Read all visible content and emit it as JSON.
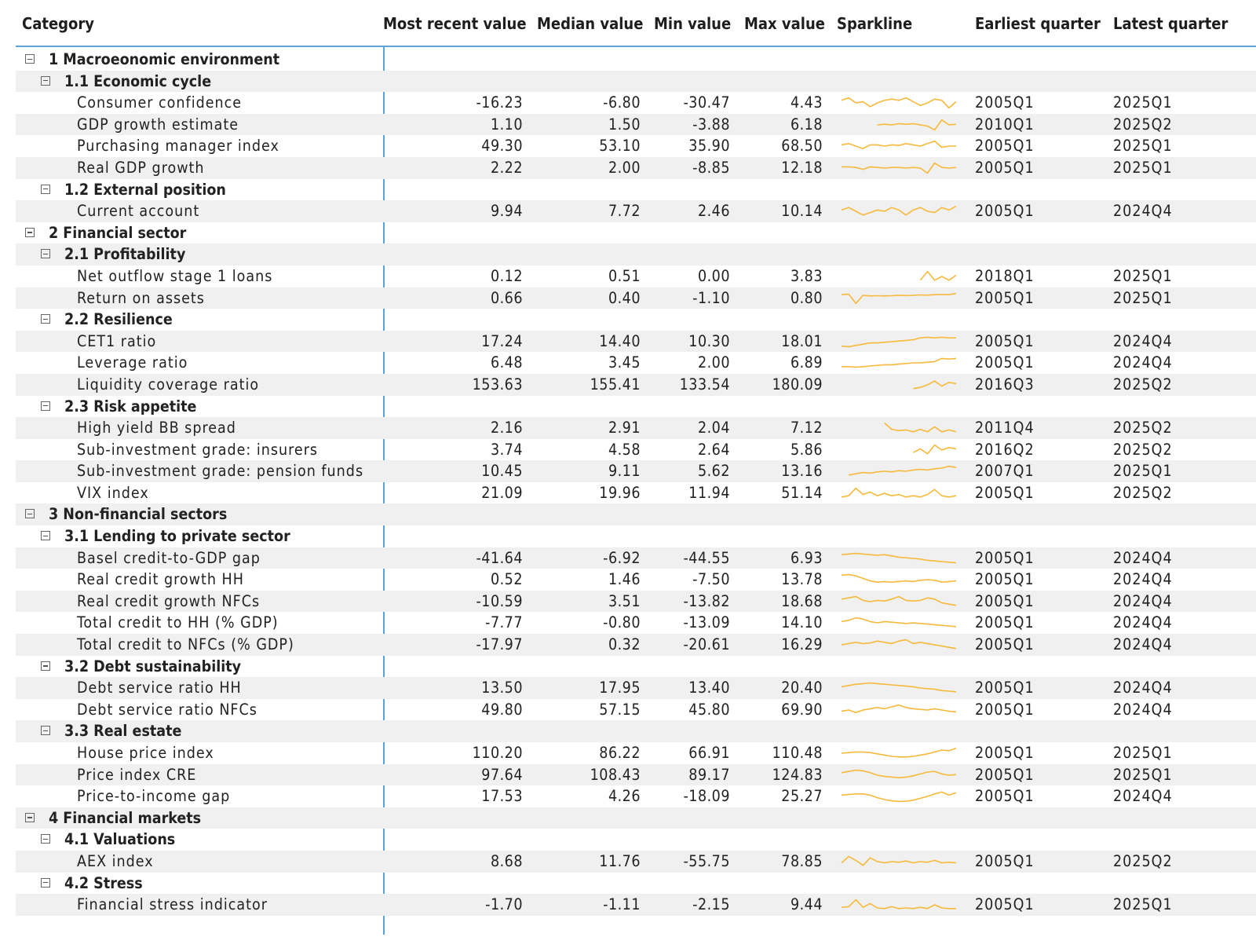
{
  "columns": [
    "Category",
    "Most recent value",
    "Median value",
    "Min value",
    "Max value",
    "Sparkline",
    "Earliest quarter",
    "Latest quarter"
  ],
  "sparkline_color": "#f6b93b",
  "rows": [
    {
      "level": 0,
      "label": "1 Macroeonomic environment"
    },
    {
      "level": 1,
      "label": "1.1 Economic cycle"
    },
    {
      "level": 2,
      "label": "Consumer confidence",
      "recent": "-16.23",
      "median": "-6.80",
      "min": "-30.47",
      "max": "4.43",
      "earliest": "2005Q1",
      "latest": "2025Q1",
      "spark": [
        0.7,
        0.9,
        0.5,
        0.6,
        0.2,
        0.5,
        0.7,
        0.8,
        0.7,
        0.9,
        0.6,
        0.3,
        0.5,
        0.8,
        0.7,
        0.1,
        0.6
      ]
    },
    {
      "level": 2,
      "label": "GDP growth estimate",
      "recent": "1.10",
      "median": "1.50",
      "min": "-3.88",
      "max": "6.18",
      "earliest": "2010Q1",
      "latest": "2025Q2",
      "spark": [
        null,
        null,
        null,
        null,
        null,
        0.5,
        0.55,
        0.5,
        0.6,
        0.55,
        0.6,
        0.5,
        0.4,
        0.1,
        0.9,
        0.5,
        0.55
      ]
    },
    {
      "level": 2,
      "label": "Purchasing manager index",
      "recent": "49.30",
      "median": "53.10",
      "min": "35.90",
      "max": "68.50",
      "earliest": "2005Q1",
      "latest": "2025Q1",
      "spark": [
        0.6,
        0.7,
        0.5,
        0.3,
        0.6,
        0.6,
        0.5,
        0.6,
        0.55,
        0.7,
        0.6,
        0.5,
        0.7,
        0.9,
        0.4,
        0.5,
        0.5
      ]
    },
    {
      "level": 2,
      "label": "Real GDP growth",
      "recent": "2.22",
      "median": "2.00",
      "min": "-8.85",
      "max": "12.18",
      "earliest": "2005Q1",
      "latest": "2025Q1",
      "spark": [
        0.6,
        0.6,
        0.55,
        0.4,
        0.6,
        0.55,
        0.5,
        0.55,
        0.55,
        0.5,
        0.55,
        0.5,
        0.1,
        0.9,
        0.55,
        0.5,
        0.55
      ]
    },
    {
      "level": 1,
      "label": "1.2 External position"
    },
    {
      "level": 2,
      "label": "Current account",
      "recent": "9.94",
      "median": "7.72",
      "min": "2.46",
      "max": "10.14",
      "earliest": "2005Q1",
      "latest": "2024Q4",
      "spark": [
        0.6,
        0.8,
        0.5,
        0.2,
        0.4,
        0.6,
        0.5,
        0.8,
        0.6,
        0.2,
        0.6,
        0.8,
        0.5,
        0.4,
        0.8,
        0.6,
        0.9
      ]
    },
    {
      "level": 0,
      "label": "2 Financial sector"
    },
    {
      "level": 1,
      "label": "2.1 Profitability"
    },
    {
      "level": 2,
      "label": "Net outflow stage 1 loans",
      "recent": "0.12",
      "median": "0.51",
      "min": "0.00",
      "max": "3.83",
      "earliest": "2018Q1",
      "latest": "2025Q1",
      "spark": [
        null,
        null,
        null,
        null,
        null,
        null,
        null,
        null,
        null,
        null,
        null,
        0.2,
        0.9,
        0.2,
        0.5,
        0.2,
        0.6
      ]
    },
    {
      "level": 2,
      "label": "Return on assets",
      "recent": "0.66",
      "median": "0.40",
      "min": "-1.10",
      "max": "0.80",
      "earliest": "2005Q1",
      "latest": "2025Q1",
      "spark": [
        0.8,
        0.85,
        0.1,
        0.75,
        0.7,
        0.72,
        0.7,
        0.72,
        0.75,
        0.73,
        0.75,
        0.78,
        0.76,
        0.8,
        0.82,
        0.8,
        0.9
      ]
    },
    {
      "level": 1,
      "label": "2.2 Resilience"
    },
    {
      "level": 2,
      "label": "CET1 ratio",
      "recent": "17.24",
      "median": "14.40",
      "min": "10.30",
      "max": "18.01",
      "earliest": "2005Q1",
      "latest": "2024Q4",
      "spark": [
        0.15,
        0.1,
        0.2,
        0.3,
        0.4,
        0.4,
        0.45,
        0.5,
        0.55,
        0.6,
        0.65,
        0.8,
        0.85,
        0.8,
        0.85,
        0.8,
        0.8
      ]
    },
    {
      "level": 2,
      "label": "Leverage ratio",
      "recent": "6.48",
      "median": "3.45",
      "min": "2.00",
      "max": "6.89",
      "earliest": "2005Q1",
      "latest": "2024Q4",
      "spark": [
        0.2,
        0.2,
        0.15,
        0.2,
        0.25,
        0.3,
        0.35,
        0.35,
        0.4,
        0.45,
        0.5,
        0.5,
        0.55,
        0.6,
        0.85,
        0.8,
        0.85
      ]
    },
    {
      "level": 2,
      "label": "Liquidity coverage ratio",
      "recent": "153.63",
      "median": "155.41",
      "min": "133.54",
      "max": "180.09",
      "earliest": "2016Q3",
      "latest": "2025Q2",
      "spark": [
        null,
        null,
        null,
        null,
        null,
        null,
        null,
        null,
        null,
        null,
        0.2,
        0.3,
        0.5,
        0.8,
        0.4,
        0.7,
        0.6
      ]
    },
    {
      "level": 1,
      "label": "2.3 Risk appetite"
    },
    {
      "level": 2,
      "label": "High yield BB spread",
      "recent": "2.16",
      "median": "2.91",
      "min": "2.04",
      "max": "7.12",
      "earliest": "2011Q4",
      "latest": "2025Q2",
      "spark": [
        null,
        null,
        null,
        null,
        null,
        null,
        0.9,
        0.4,
        0.3,
        0.35,
        0.2,
        0.4,
        0.2,
        0.6,
        0.2,
        0.35,
        0.2
      ]
    },
    {
      "level": 2,
      "label": "Sub-investment grade: insurers",
      "recent": "3.74",
      "median": "4.58",
      "min": "2.64",
      "max": "5.86",
      "earliest": "2016Q2",
      "latest": "2025Q2",
      "spark": [
        null,
        null,
        null,
        null,
        null,
        null,
        null,
        null,
        null,
        null,
        0.3,
        0.6,
        0.2,
        0.9,
        0.5,
        0.7,
        0.6
      ]
    },
    {
      "level": 2,
      "label": "Sub-investment grade: pension funds",
      "recent": "10.45",
      "median": "9.11",
      "min": "5.62",
      "max": "13.16",
      "earliest": "2007Q1",
      "latest": "2025Q1",
      "spark": [
        null,
        0.2,
        0.3,
        0.4,
        0.35,
        0.45,
        0.5,
        0.45,
        0.55,
        0.5,
        0.6,
        0.65,
        0.6,
        0.7,
        0.75,
        0.9,
        0.8
      ]
    },
    {
      "level": 2,
      "label": "VIX index",
      "recent": "21.09",
      "median": "19.96",
      "min": "11.94",
      "max": "51.14",
      "earliest": "2005Q1",
      "latest": "2025Q2",
      "spark": [
        0.2,
        0.3,
        0.9,
        0.4,
        0.6,
        0.3,
        0.5,
        0.3,
        0.4,
        0.2,
        0.3,
        0.2,
        0.4,
        0.8,
        0.3,
        0.2,
        0.3
      ]
    },
    {
      "level": 0,
      "label": "3 Non-financial sectors"
    },
    {
      "level": 1,
      "label": "3.1 Lending to private sector"
    },
    {
      "level": 2,
      "label": "Basel credit-to-GDP gap",
      "recent": "-41.64",
      "median": "-6.92",
      "min": "-44.55",
      "max": "6.93",
      "earliest": "2005Q1",
      "latest": "2024Q4",
      "spark": [
        0.8,
        0.85,
        0.9,
        0.85,
        0.8,
        0.75,
        0.8,
        0.7,
        0.6,
        0.55,
        0.5,
        0.45,
        0.35,
        0.3,
        0.25,
        0.2,
        0.15
      ]
    },
    {
      "level": 2,
      "label": "Real credit growth HH",
      "recent": "0.52",
      "median": "1.46",
      "min": "-7.50",
      "max": "13.78",
      "earliest": "2005Q1",
      "latest": "2024Q4",
      "spark": [
        0.85,
        0.9,
        0.8,
        0.6,
        0.4,
        0.3,
        0.35,
        0.3,
        0.35,
        0.4,
        0.35,
        0.45,
        0.5,
        0.45,
        0.3,
        0.35,
        0.4
      ]
    },
    {
      "level": 2,
      "label": "Real credit growth NFCs",
      "recent": "-10.59",
      "median": "3.51",
      "min": "-13.82",
      "max": "18.68",
      "earliest": "2005Q1",
      "latest": "2024Q4",
      "spark": [
        0.7,
        0.8,
        0.9,
        0.6,
        0.5,
        0.6,
        0.55,
        0.7,
        0.9,
        0.6,
        0.55,
        0.6,
        0.8,
        0.7,
        0.4,
        0.3,
        0.2
      ]
    },
    {
      "level": 2,
      "label": "Total credit to HH (% GDP)",
      "recent": "-7.77",
      "median": "-0.80",
      "min": "-13.09",
      "max": "14.10",
      "earliest": "2005Q1",
      "latest": "2024Q4",
      "spark": [
        0.6,
        0.7,
        0.9,
        0.8,
        0.6,
        0.5,
        0.6,
        0.55,
        0.5,
        0.45,
        0.5,
        0.45,
        0.4,
        0.35,
        0.3,
        0.25,
        0.2
      ]
    },
    {
      "level": 2,
      "label": "Total credit to NFCs (% GDP)",
      "recent": "-17.97",
      "median": "0.32",
      "min": "-20.61",
      "max": "16.29",
      "earliest": "2005Q1",
      "latest": "2024Q4",
      "spark": [
        0.5,
        0.6,
        0.7,
        0.6,
        0.65,
        0.8,
        0.7,
        0.6,
        0.8,
        0.9,
        0.6,
        0.7,
        0.6,
        0.5,
        0.4,
        0.3,
        0.2
      ]
    },
    {
      "level": 1,
      "label": "3.2 Debt sustainability"
    },
    {
      "level": 2,
      "label": "Debt service ratio HH",
      "recent": "13.50",
      "median": "17.95",
      "min": "13.40",
      "max": "20.40",
      "earliest": "2005Q1",
      "latest": "2024Q4",
      "spark": [
        0.6,
        0.7,
        0.8,
        0.85,
        0.9,
        0.85,
        0.8,
        0.75,
        0.7,
        0.65,
        0.6,
        0.5,
        0.45,
        0.4,
        0.3,
        0.25,
        0.2
      ]
    },
    {
      "level": 2,
      "label": "Debt service ratio NFCs",
      "recent": "49.80",
      "median": "57.15",
      "min": "45.80",
      "max": "69.90",
      "earliest": "2005Q1",
      "latest": "2024Q4",
      "spark": [
        0.4,
        0.5,
        0.3,
        0.5,
        0.6,
        0.7,
        0.6,
        0.75,
        0.9,
        0.7,
        0.6,
        0.55,
        0.5,
        0.6,
        0.5,
        0.4,
        0.35
      ]
    },
    {
      "level": 1,
      "label": "3.3 Real estate"
    },
    {
      "level": 2,
      "label": "House price index",
      "recent": "110.20",
      "median": "86.22",
      "min": "66.91",
      "max": "110.48",
      "earliest": "2005Q1",
      "latest": "2025Q1",
      "spark": [
        0.5,
        0.55,
        0.6,
        0.6,
        0.55,
        0.45,
        0.35,
        0.25,
        0.2,
        0.2,
        0.25,
        0.35,
        0.45,
        0.6,
        0.75,
        0.7,
        0.9
      ]
    },
    {
      "level": 2,
      "label": "Price index CRE",
      "recent": "97.64",
      "median": "108.43",
      "min": "89.17",
      "max": "124.83",
      "earliest": "2005Q1",
      "latest": "2025Q1",
      "spark": [
        0.7,
        0.8,
        0.9,
        0.85,
        0.7,
        0.5,
        0.4,
        0.35,
        0.3,
        0.35,
        0.45,
        0.6,
        0.75,
        0.8,
        0.6,
        0.5,
        0.55
      ]
    },
    {
      "level": 2,
      "label": "Price-to-income gap",
      "recent": "17.53",
      "median": "4.26",
      "min": "-18.09",
      "max": "25.27",
      "earliest": "2005Q1",
      "latest": "2024Q4",
      "spark": [
        0.6,
        0.65,
        0.7,
        0.7,
        0.6,
        0.4,
        0.25,
        0.15,
        0.1,
        0.12,
        0.2,
        0.35,
        0.5,
        0.7,
        0.85,
        0.6,
        0.8
      ]
    },
    {
      "level": 0,
      "label": "4 Financial markets"
    },
    {
      "level": 1,
      "label": "4.1 Valuations"
    },
    {
      "level": 2,
      "label": "AEX index",
      "recent": "8.68",
      "median": "11.76",
      "min": "-55.75",
      "max": "78.85",
      "earliest": "2005Q1",
      "latest": "2025Q2",
      "spark": [
        0.4,
        0.9,
        0.6,
        0.2,
        0.8,
        0.5,
        0.4,
        0.5,
        0.45,
        0.55,
        0.4,
        0.5,
        0.45,
        0.6,
        0.4,
        0.45,
        0.4
      ]
    },
    {
      "level": 1,
      "label": "4.2 Stress"
    },
    {
      "level": 2,
      "label": "Financial stress indicator",
      "recent": "-1.70",
      "median": "-1.11",
      "min": "-2.15",
      "max": "9.44",
      "earliest": "2005Q1",
      "latest": "2025Q1",
      "spark": [
        0.3,
        0.35,
        0.9,
        0.3,
        0.6,
        0.25,
        0.2,
        0.35,
        0.2,
        0.25,
        0.2,
        0.3,
        0.2,
        0.5,
        0.25,
        0.2,
        0.2
      ]
    }
  ]
}
